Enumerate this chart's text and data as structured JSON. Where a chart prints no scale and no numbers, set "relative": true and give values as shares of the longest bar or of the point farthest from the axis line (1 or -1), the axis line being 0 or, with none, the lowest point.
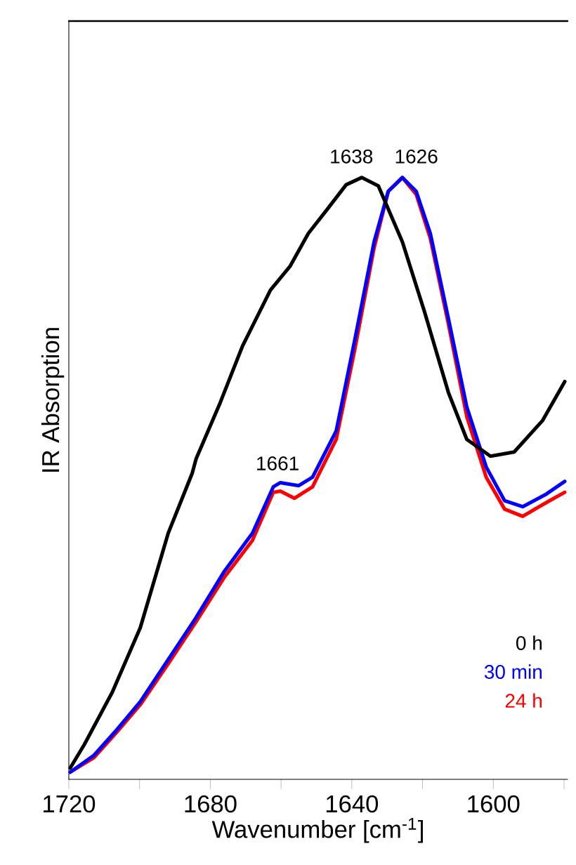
{
  "chart_data": {
    "type": "line",
    "relative": true,
    "xlabel": "Wavenumber [cm$^{-1}$]",
    "ylabel": "IR Absorption",
    "xlim": [
      1720,
      1579
    ],
    "xticks": [
      1720,
      {
        "value": 1700,
        "label": null
      },
      1680,
      {
        "value": 1660,
        "label": null
      },
      1640,
      {
        "value": 1620,
        "label": null
      },
      1600,
      {
        "value": 1580,
        "label": null
      }
    ],
    "legend": "bottom right",
    "grid": false,
    "marker": "none",
    "line_style": "solid",
    "annotations": [
      {
        "text": "1638",
        "x": 1638,
        "y": 1.0
      },
      {
        "text": "1626",
        "x": 1626,
        "y": 1.0
      },
      {
        "text": "1661",
        "x": 1661,
        "y": 0.49
      }
    ],
    "series": [
      {
        "name": "0 h",
        "color": "#000000",
        "x": [
          1719.6,
          1715.6,
          1707.7,
          1699.8,
          1691.9,
          1685.1,
          1684,
          1677.2,
          1670.9,
          1663,
          1657.4,
          1652.3,
          1647.1,
          1641.6,
          1637.2,
          1632.5,
          1625.7,
          1619.4,
          1612.7,
          1607.5,
          1600.8,
          1594.1,
          1586.1,
          1579.8
        ],
        "values": [
          0.019,
          0.058,
          0.145,
          0.252,
          0.409,
          0.509,
          0.533,
          0.626,
          0.72,
          0.813,
          0.853,
          0.907,
          0.946,
          0.988,
          1.0,
          0.986,
          0.893,
          0.776,
          0.643,
          0.565,
          0.537,
          0.544,
          0.596,
          0.661
        ]
      },
      {
        "name": "30 min",
        "color": "#0000ff",
        "x": [
          1719.6,
          1712.9,
          1706.5,
          1699.8,
          1691.9,
          1684,
          1676,
          1668.1,
          1662.2,
          1660.2,
          1655,
          1651.1,
          1644.4,
          1639.2,
          1633.7,
          1629.7,
          1625.7,
          1621.8,
          1617.8,
          1612.7,
          1607.5,
          1602,
          1596.8,
          1591.7,
          1585,
          1579.8
        ],
        "values": [
          0.012,
          0.04,
          0.082,
          0.129,
          0.199,
          0.269,
          0.346,
          0.409,
          0.486,
          0.493,
          0.488,
          0.502,
          0.579,
          0.729,
          0.893,
          0.977,
          1.0,
          0.977,
          0.907,
          0.766,
          0.619,
          0.519,
          0.463,
          0.453,
          0.474,
          0.495
        ]
      },
      {
        "name": "24 h",
        "color": "#ff0000",
        "x": [
          1719.6,
          1712.9,
          1706.5,
          1699.8,
          1691.9,
          1684,
          1676,
          1668.1,
          1662.2,
          1660.2,
          1656.2,
          1651.1,
          1644.4,
          1639.2,
          1633.7,
          1629.7,
          1625.7,
          1621.8,
          1617.8,
          1612.7,
          1607.5,
          1602,
          1596.8,
          1591.7,
          1585,
          1579.8
        ],
        "values": [
          0.012,
          0.036,
          0.078,
          0.124,
          0.192,
          0.262,
          0.336,
          0.397,
          0.477,
          0.479,
          0.467,
          0.486,
          0.565,
          0.713,
          0.883,
          0.977,
          1.0,
          0.972,
          0.899,
          0.757,
          0.603,
          0.502,
          0.449,
          0.437,
          0.46,
          0.477
        ]
      }
    ]
  }
}
